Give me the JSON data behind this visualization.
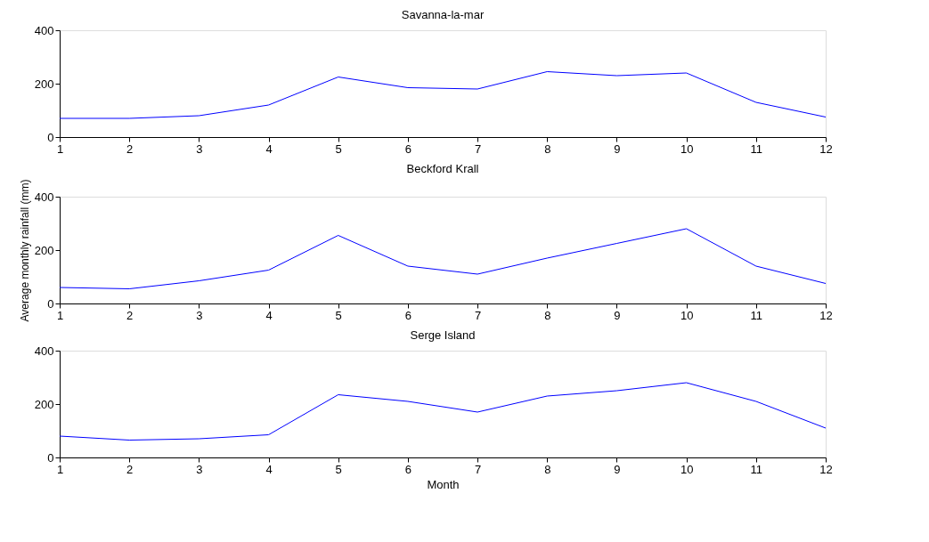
{
  "chart_data": [
    {
      "type": "line",
      "title": "Savanna-la-mar",
      "x": [
        1,
        2,
        3,
        4,
        5,
        6,
        7,
        8,
        9,
        10,
        11,
        12
      ],
      "series": [
        {
          "color": "#0000ff",
          "values": [
            70,
            70,
            80,
            120,
            225,
            185,
            180,
            245,
            230,
            240,
            130,
            75
          ]
        }
      ],
      "xlim": [
        1,
        12
      ],
      "xticks": [
        1,
        2,
        3,
        4,
        5,
        6,
        7,
        8,
        9,
        10,
        11,
        12
      ],
      "ylim": [
        0,
        400
      ],
      "yticks": [
        0,
        200,
        400
      ],
      "grid": false
    },
    {
      "type": "line",
      "title": "Beckford Krall",
      "ylabel": "Average monthly rainfall (mm)",
      "x": [
        1,
        2,
        3,
        4,
        5,
        6,
        7,
        8,
        9,
        10,
        11,
        12
      ],
      "series": [
        {
          "color": "#0000ff",
          "values": [
            60,
            55,
            85,
            125,
            255,
            140,
            110,
            170,
            225,
            280,
            140,
            75
          ]
        }
      ],
      "xlim": [
        1,
        12
      ],
      "xticks": [
        1,
        2,
        3,
        4,
        5,
        6,
        7,
        8,
        9,
        10,
        11,
        12
      ],
      "ylim": [
        0,
        400
      ],
      "yticks": [
        0,
        200,
        400
      ],
      "grid": false
    },
    {
      "type": "line",
      "title": "Serge Island",
      "xlabel": "Month",
      "x": [
        1,
        2,
        3,
        4,
        5,
        6,
        7,
        8,
        9,
        10,
        11,
        12
      ],
      "series": [
        {
          "color": "#0000ff",
          "values": [
            80,
            65,
            70,
            85,
            235,
            210,
            170,
            230,
            250,
            280,
            210,
            110
          ]
        }
      ],
      "xlim": [
        1,
        12
      ],
      "xticks": [
        1,
        2,
        3,
        4,
        5,
        6,
        7,
        8,
        9,
        10,
        11,
        12
      ],
      "ylim": [
        0,
        400
      ],
      "yticks": [
        0,
        200,
        400
      ],
      "grid": false
    }
  ]
}
